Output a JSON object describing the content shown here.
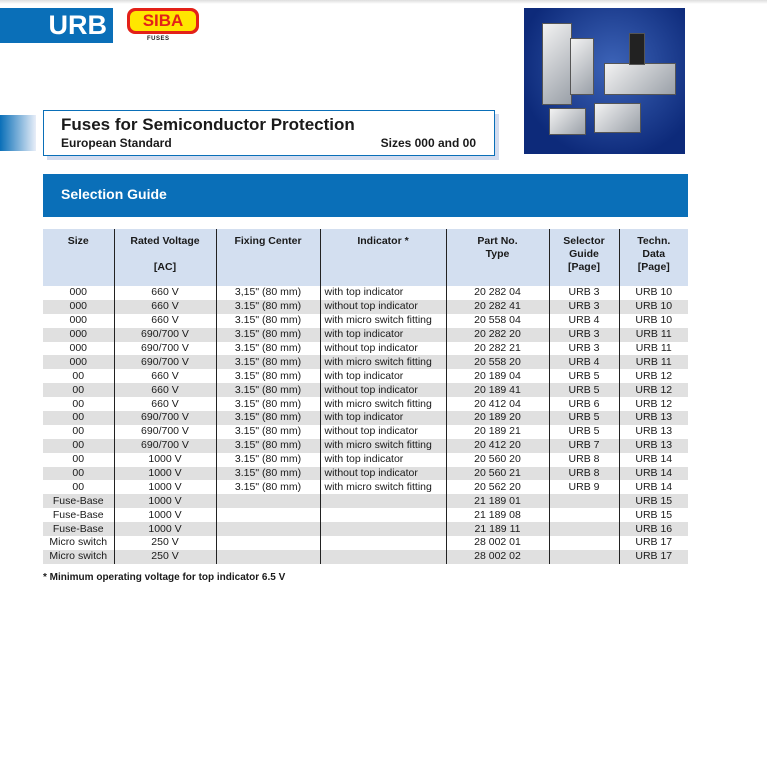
{
  "header": {
    "series": "URB",
    "logo_text": "SIBA",
    "logo_sub": "FUSES"
  },
  "title": {
    "main": "Fuses for Semiconductor Protection",
    "sub": "European Standard",
    "sizes": "Sizes 000 and 00"
  },
  "section": "Selection Guide",
  "table": {
    "headers": [
      [
        "Size"
      ],
      [
        "Rated Voltage",
        "",
        "[AC]"
      ],
      [
        "Fixing Center"
      ],
      [
        "Indicator *"
      ],
      [
        "Part No.",
        "Type"
      ],
      [
        "Selector",
        "Guide",
        "[Page]"
      ],
      [
        "Techn.",
        "Data",
        "[Page]"
      ]
    ],
    "rows": [
      [
        "000",
        "660 V",
        "3,15\" (80 mm)",
        "with top indicator",
        "20 282 04",
        "URB 3",
        "URB 10"
      ],
      [
        "000",
        "660 V",
        "3.15\" (80 mm)",
        "without top indicator",
        "20 282 41",
        "URB 3",
        "URB 10"
      ],
      [
        "000",
        "660 V",
        "3.15\" (80 mm)",
        "with micro switch fitting",
        "20 558 04",
        "URB 4",
        "URB 10"
      ],
      [
        "000",
        "690/700 V",
        "3.15\" (80 mm)",
        "with top indicator",
        "20 282 20",
        "URB 3",
        "URB 11"
      ],
      [
        "000",
        "690/700 V",
        "3.15\" (80 mm)",
        "without top indicator",
        "20 282 21",
        "URB 3",
        "URB 11"
      ],
      [
        "000",
        "690/700 V",
        "3.15\" (80 mm)",
        "with micro switch fitting",
        "20 558 20",
        "URB 4",
        "URB 11"
      ],
      [
        "00",
        "660 V",
        "3.15\" (80 mm)",
        "with top indicator",
        "20 189 04",
        "URB 5",
        "URB 12"
      ],
      [
        "00",
        "660 V",
        "3.15\" (80 mm)",
        "without top indicator",
        "20 189 41",
        "URB 5",
        "URB 12"
      ],
      [
        "00",
        "660 V",
        "3.15\" (80 mm)",
        "with micro switch fitting",
        "20 412 04",
        "URB 6",
        "URB 12"
      ],
      [
        "00",
        "690/700 V",
        "3.15\" (80 mm)",
        "with top indicator",
        "20 189 20",
        "URB 5",
        "URB 13"
      ],
      [
        "00",
        "690/700 V",
        "3.15\" (80 mm)",
        "without top indicator",
        "20 189 21",
        "URB 5",
        "URB 13"
      ],
      [
        "00",
        "690/700 V",
        "3.15\" (80 mm)",
        "with micro switch fitting",
        "20 412 20",
        "URB 7",
        "URB 13"
      ],
      [
        "00",
        "1000 V",
        "3.15\" (80 mm)",
        "with top indicator",
        "20 560 20",
        "URB 8",
        "URB 14"
      ],
      [
        "00",
        "1000 V",
        "3.15\" (80 mm)",
        "without top indicator",
        "20 560 21",
        "URB 8",
        "URB 14"
      ],
      [
        "00",
        "1000 V",
        "3.15\" (80 mm)",
        "with micro switch fitting",
        "20 562 20",
        "URB 9",
        "URB 14"
      ],
      [
        "Fuse-Base",
        "1000 V",
        "",
        "",
        "21 189 01",
        "",
        "URB 15"
      ],
      [
        "Fuse-Base",
        "1000 V",
        "",
        "",
        "21 189 08",
        "",
        "URB 15"
      ],
      [
        "Fuse-Base",
        "1000 V",
        "",
        "",
        "21 189 11",
        "",
        "URB 16"
      ],
      [
        "Micro switch",
        "250 V",
        "",
        "",
        "28 002 01",
        "",
        "URB 17"
      ],
      [
        "Micro switch",
        "250 V",
        "",
        "",
        "28 002 02",
        "",
        "URB 17"
      ]
    ]
  },
  "footnote": "* Minimum operating voltage for top indicator 6.5 V",
  "colors": {
    "brand_blue": "#0a6fb8",
    "header_bg": "#d3dff0",
    "stripe": "#e0e0e0"
  }
}
